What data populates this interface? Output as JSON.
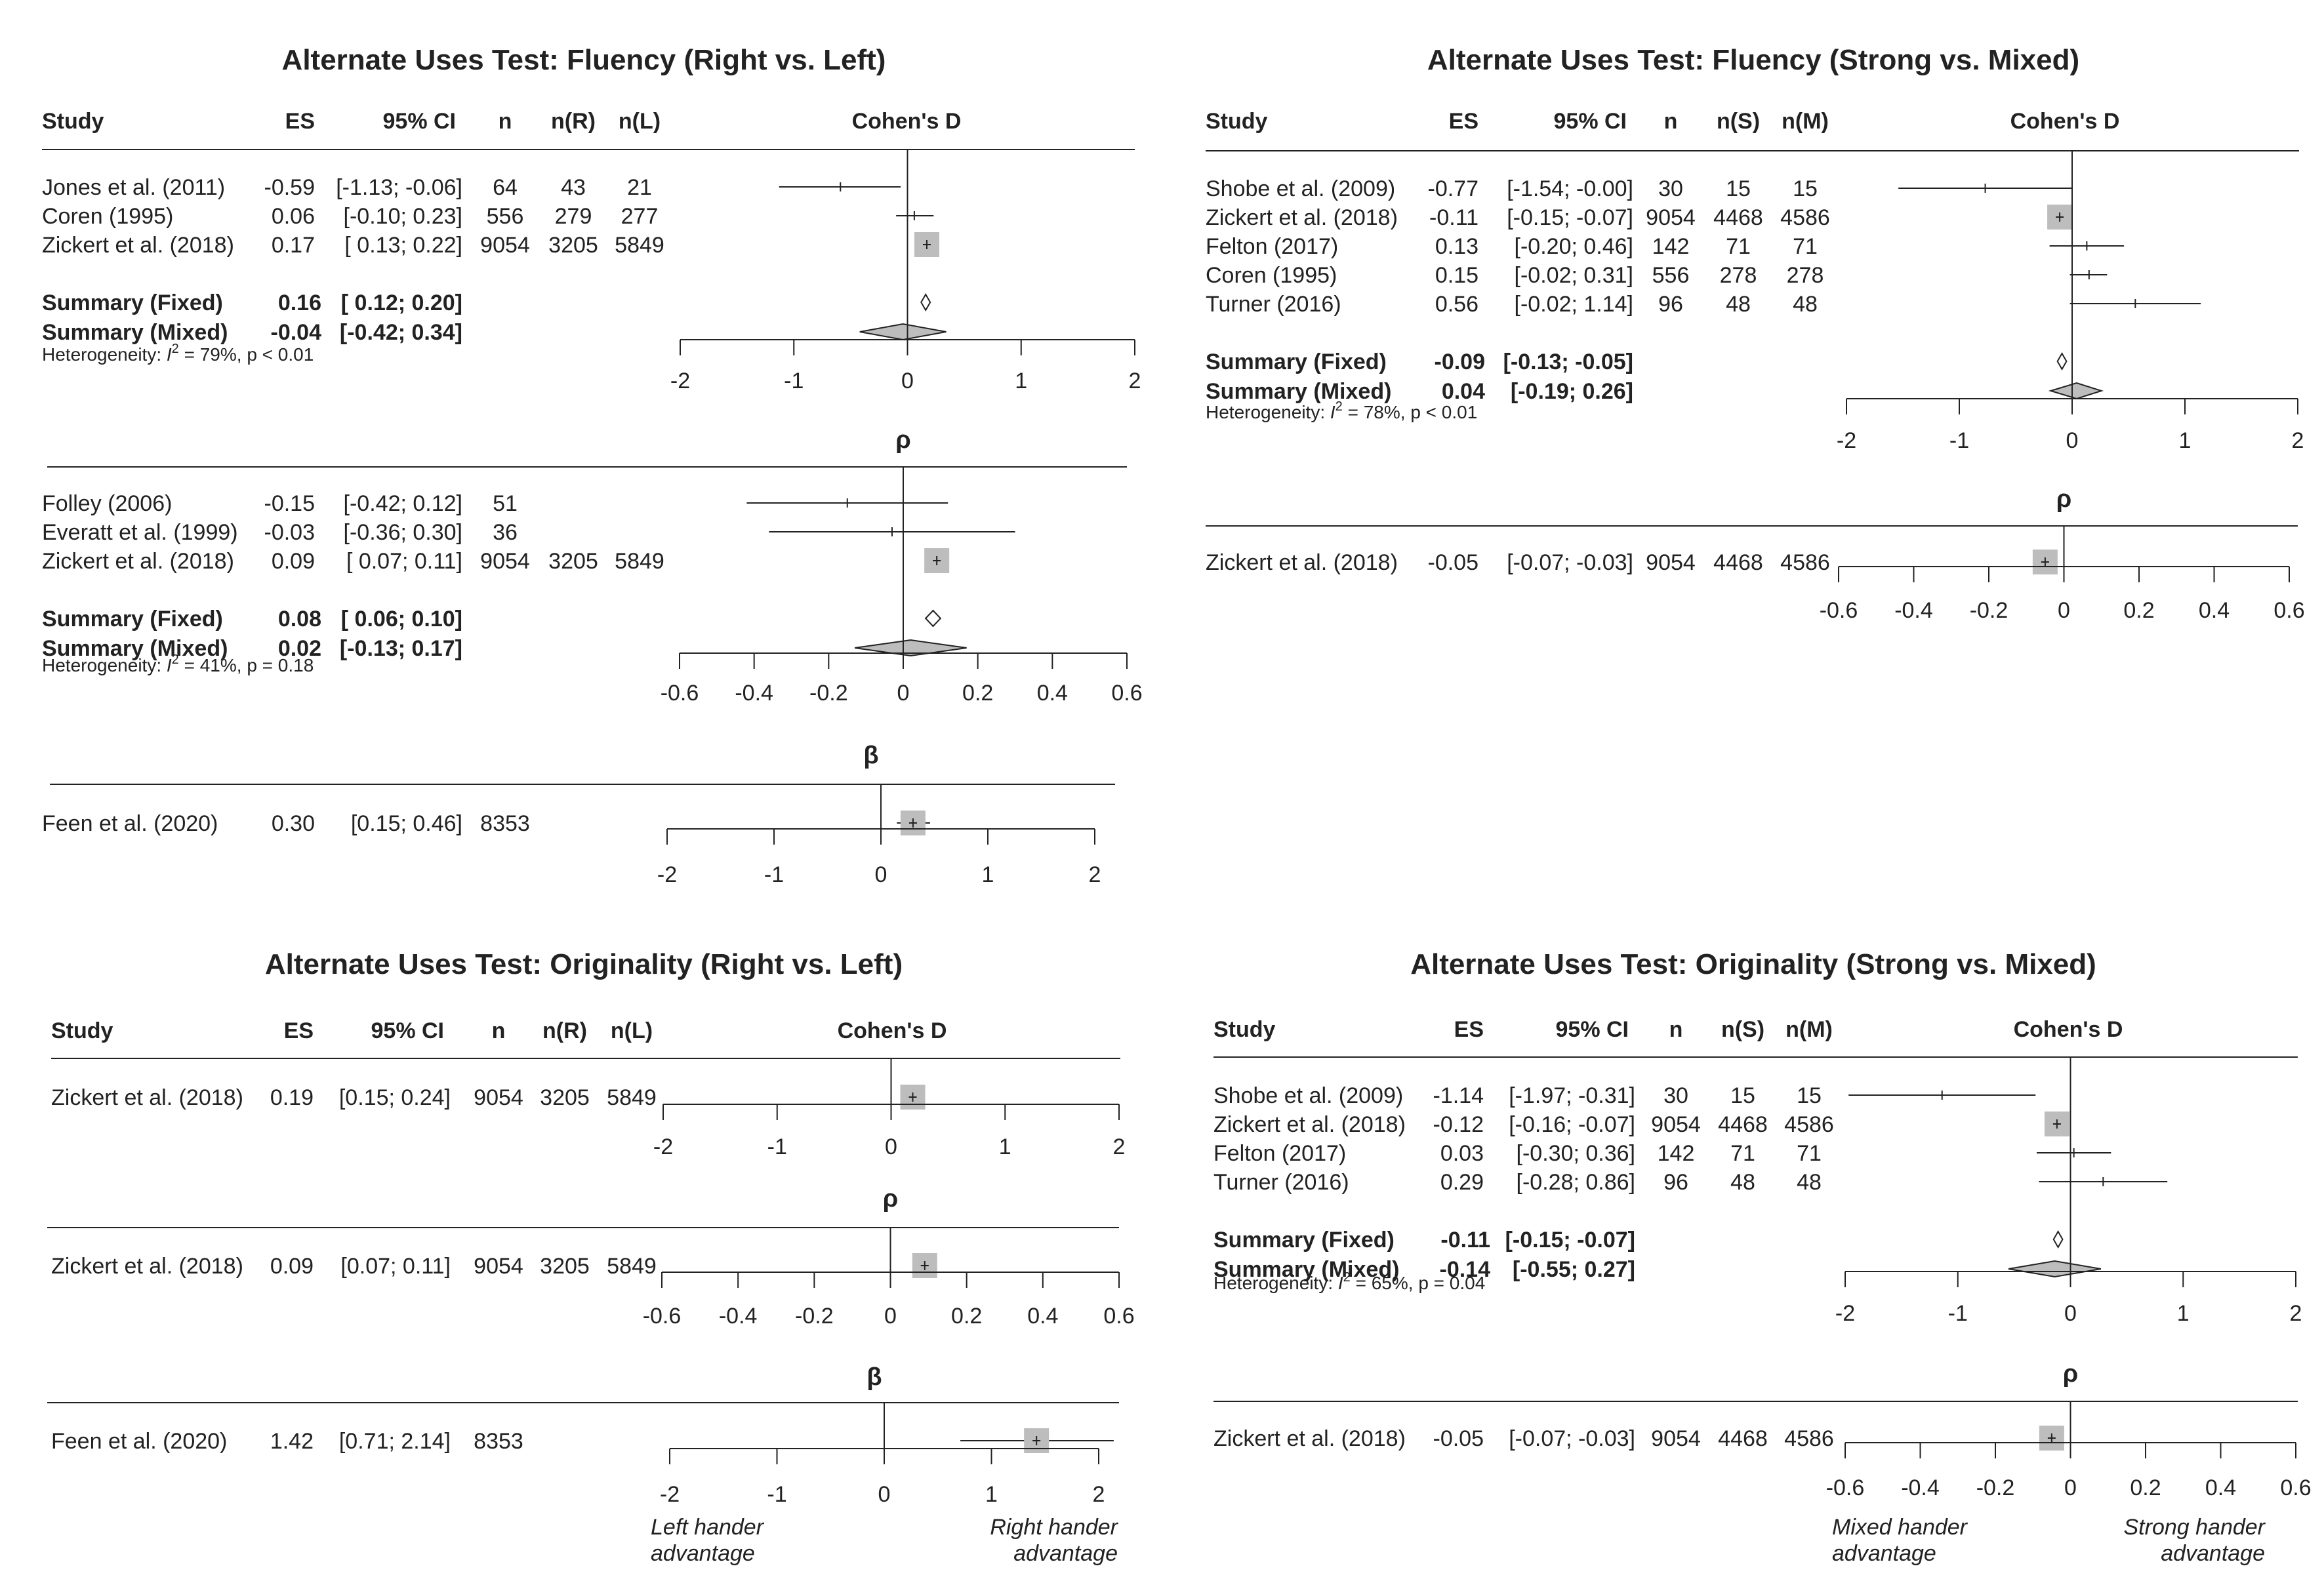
{
  "chart_data": [
    {
      "type": "forest",
      "title": "Alternate Uses Test: Fluency (Right vs. Left)",
      "columns": [
        "Study",
        "ES",
        "95% CI",
        "n",
        "n(R)",
        "n(L)"
      ],
      "axis_title": "",
      "sections": [
        {
          "label": "Cohen's D",
          "xlim": [
            -2,
            2
          ],
          "ticks": [
            "-2",
            "-1",
            "0",
            "1",
            "2"
          ],
          "studies": [
            {
              "study": "Jones et al. (2011)",
              "es_text": "-0.59",
              "ci_text": "[-1.13; -0.06]",
              "n": "64",
              "n1": "43",
              "n2": "21",
              "es": -0.59,
              "lo": -1.13,
              "hi": -0.06,
              "w": 0.1
            },
            {
              "study": "Coren (1995)",
              "es_text": "0.06",
              "ci_text": "[-0.10;  0.23]",
              "n": "556",
              "n1": "279",
              "n2": "277",
              "es": 0.06,
              "lo": -0.1,
              "hi": 0.23,
              "w": 0.25
            },
            {
              "study": "Zickert et al. (2018)",
              "es_text": "0.17",
              "ci_text": "[ 0.13;  0.22]",
              "n": "9054",
              "n1": "3205",
              "n2": "5849",
              "es": 0.17,
              "lo": 0.13,
              "hi": 0.22,
              "w": 1.0
            }
          ],
          "summaries": [
            {
              "label": "Summary (Fixed)",
              "es_text": "0.16",
              "ci_text": "[ 0.12;  0.20]",
              "es": 0.16,
              "lo": 0.12,
              "hi": 0.2
            },
            {
              "label": "Summary (Mixed)",
              "es_text": "-0.04",
              "ci_text": "[-0.42;  0.34]",
              "es": -0.04,
              "lo": -0.42,
              "hi": 0.34
            }
          ],
          "heterogeneity": {
            "i2": "79%",
            "p": "p < 0.01"
          }
        },
        {
          "label": "ρ",
          "xlim": [
            -0.6,
            0.6
          ],
          "ticks": [
            "-0.6",
            "-0.4",
            "-0.2",
            "0",
            "0.2",
            "0.4",
            "0.6"
          ],
          "studies": [
            {
              "study": "Folley (2006)",
              "es_text": "-0.15",
              "ci_text": "[-0.42; 0.12]",
              "n": "51",
              "n1": "",
              "n2": "",
              "es": -0.15,
              "lo": -0.42,
              "hi": 0.12,
              "w": 0.1
            },
            {
              "study": "Everatt et al. (1999)",
              "es_text": "-0.03",
              "ci_text": "[-0.36; 0.30]",
              "n": "36",
              "n1": "",
              "n2": "",
              "es": -0.03,
              "lo": -0.36,
              "hi": 0.3,
              "w": 0.1
            },
            {
              "study": "Zickert et al. (2018)",
              "es_text": "0.09",
              "ci_text": "[ 0.07; 0.11]",
              "n": "9054",
              "n1": "3205",
              "n2": "5849",
              "es": 0.09,
              "lo": 0.07,
              "hi": 0.11,
              "w": 1.0
            }
          ],
          "summaries": [
            {
              "label": "Summary (Fixed)",
              "es_text": "0.08",
              "ci_text": "[ 0.06; 0.10]",
              "es": 0.08,
              "lo": 0.06,
              "hi": 0.1
            },
            {
              "label": "Summary (Mixed)",
              "es_text": "0.02",
              "ci_text": "[-0.13; 0.17]",
              "es": 0.02,
              "lo": -0.13,
              "hi": 0.17
            }
          ],
          "heterogeneity": {
            "i2": "41%",
            "p": "p = 0.18"
          }
        },
        {
          "label": "β",
          "xlim": [
            -2,
            2
          ],
          "ticks": [
            "-2",
            "-1",
            "0",
            "1",
            "2"
          ],
          "studies": [
            {
              "study": "Feen et al. (2020)",
              "es_text": "0.30",
              "ci_text": "[0.15; 0.46]",
              "n": "8353",
              "n1": "",
              "n2": "",
              "es": 0.3,
              "lo": 0.15,
              "hi": 0.46,
              "w": 1.0
            }
          ],
          "summaries": [],
          "heterogeneity": null
        }
      ],
      "advantage_left": "",
      "advantage_right": ""
    },
    {
      "type": "forest",
      "title": "Alternate Uses Test: Fluency (Strong vs. Mixed)",
      "columns": [
        "Study",
        "ES",
        "95% CI",
        "n",
        "n(S)",
        "n(M)"
      ],
      "sections": [
        {
          "label": "Cohen's D",
          "xlim": [
            -2,
            2
          ],
          "ticks": [
            "-2",
            "-1",
            "0",
            "1",
            "2"
          ],
          "studies": [
            {
              "study": "Shobe et al. (2009)",
              "es_text": "-0.77",
              "ci_text": "[-1.54; -0.00]",
              "n": "30",
              "n1": "15",
              "n2": "15",
              "es": -0.77,
              "lo": -1.54,
              "hi": -0.0,
              "w": 0.1
            },
            {
              "study": "Zickert et al. (2018)",
              "es_text": "-0.11",
              "ci_text": "[-0.15; -0.07]",
              "n": "9054",
              "n1": "4468",
              "n2": "4586",
              "es": -0.11,
              "lo": -0.15,
              "hi": -0.07,
              "w": 1.0
            },
            {
              "study": "Felton (2017)",
              "es_text": "0.13",
              "ci_text": "[-0.20;  0.46]",
              "n": "142",
              "n1": "71",
              "n2": "71",
              "es": 0.13,
              "lo": -0.2,
              "hi": 0.46,
              "w": 0.1
            },
            {
              "study": "Coren (1995)",
              "es_text": "0.15",
              "ci_text": "[-0.02;  0.31]",
              "n": "556",
              "n1": "278",
              "n2": "278",
              "es": 0.15,
              "lo": -0.02,
              "hi": 0.31,
              "w": 0.2
            },
            {
              "study": "Turner (2016)",
              "es_text": "0.56",
              "ci_text": "[-0.02;  1.14]",
              "n": "96",
              "n1": "48",
              "n2": "48",
              "es": 0.56,
              "lo": -0.02,
              "hi": 1.14,
              "w": 0.1
            }
          ],
          "summaries": [
            {
              "label": "Summary (Fixed)",
              "es_text": "-0.09",
              "ci_text": "[-0.13; -0.05]",
              "es": -0.09,
              "lo": -0.13,
              "hi": -0.05
            },
            {
              "label": "Summary (Mixed)",
              "es_text": "0.04",
              "ci_text": "[-0.19;  0.26]",
              "es": 0.04,
              "lo": -0.19,
              "hi": 0.26
            }
          ],
          "heterogeneity": {
            "i2": "78%",
            "p": "p < 0.01"
          }
        },
        {
          "label": "ρ",
          "xlim": [
            -0.6,
            0.6
          ],
          "ticks": [
            "-0.6",
            "-0.4",
            "-0.2",
            "0",
            "0.2",
            "0.4",
            "0.6"
          ],
          "studies": [
            {
              "study": "Zickert et al. (2018)",
              "es_text": "-0.05",
              "ci_text": "[-0.07; -0.03]",
              "n": "9054",
              "n1": "4468",
              "n2": "4586",
              "es": -0.05,
              "lo": -0.07,
              "hi": -0.03,
              "w": 1.0
            }
          ],
          "summaries": [],
          "heterogeneity": null
        }
      ],
      "advantage_left": "",
      "advantage_right": ""
    },
    {
      "type": "forest",
      "title": "Alternate Uses Test: Originality (Right vs. Left)",
      "columns": [
        "Study",
        "ES",
        "95% CI",
        "n",
        "n(R)",
        "n(L)"
      ],
      "sections": [
        {
          "label": "Cohen's D",
          "xlim": [
            -2,
            2
          ],
          "ticks": [
            "-2",
            "-1",
            "0",
            "1",
            "2"
          ],
          "studies": [
            {
              "study": "Zickert et al. (2018)",
              "es_text": "0.19",
              "ci_text": "[0.15; 0.24]",
              "n": "9054",
              "n1": "3205",
              "n2": "5849",
              "es": 0.19,
              "lo": 0.15,
              "hi": 0.24,
              "w": 1.0
            }
          ],
          "summaries": [],
          "heterogeneity": null
        },
        {
          "label": "ρ",
          "xlim": [
            -0.6,
            0.6
          ],
          "ticks": [
            "-0.6",
            "-0.4",
            "-0.2",
            "0",
            "0.2",
            "0.4",
            "0.6"
          ],
          "studies": [
            {
              "study": "Zickert et al. (2018)",
              "es_text": "0.09",
              "ci_text": "[0.07; 0.11]",
              "n": "9054",
              "n1": "3205",
              "n2": "5849",
              "es": 0.09,
              "lo": 0.07,
              "hi": 0.11,
              "w": 1.0
            }
          ],
          "summaries": [],
          "heterogeneity": null
        },
        {
          "label": "β",
          "xlim": [
            -2,
            2
          ],
          "ticks": [
            "-2",
            "-1",
            "0",
            "1",
            "2"
          ],
          "studies": [
            {
              "study": "Feen et al. (2020)",
              "es_text": "1.42",
              "ci_text": "[0.71; 2.14]",
              "n": "8353",
              "n1": "",
              "n2": "",
              "es": 1.42,
              "lo": 0.71,
              "hi": 2.14,
              "w": 1.0
            }
          ],
          "summaries": [],
          "heterogeneity": null
        }
      ],
      "advantage_left": "Left hander advantage",
      "advantage_right": "Right hander advantage"
    },
    {
      "type": "forest",
      "title": "Alternate Uses Test: Originality (Strong vs. Mixed)",
      "columns": [
        "Study",
        "ES",
        "95% CI",
        "n",
        "n(S)",
        "n(M)"
      ],
      "sections": [
        {
          "label": "Cohen's D",
          "xlim": [
            -2,
            2
          ],
          "ticks": [
            "-2",
            "-1",
            "0",
            "1",
            "2"
          ],
          "studies": [
            {
              "study": "Shobe et al. (2009)",
              "es_text": "-1.14",
              "ci_text": "[-1.97; -0.31]",
              "n": "30",
              "n1": "15",
              "n2": "15",
              "es": -1.14,
              "lo": -1.97,
              "hi": -0.31,
              "w": 0.1
            },
            {
              "study": "Zickert et al. (2018)",
              "es_text": "-0.12",
              "ci_text": "[-0.16; -0.07]",
              "n": "9054",
              "n1": "4468",
              "n2": "4586",
              "es": -0.12,
              "lo": -0.16,
              "hi": -0.07,
              "w": 1.0
            },
            {
              "study": "Felton (2017)",
              "es_text": "0.03",
              "ci_text": "[-0.30;  0.36]",
              "n": "142",
              "n1": "71",
              "n2": "71",
              "es": 0.03,
              "lo": -0.3,
              "hi": 0.36,
              "w": 0.1
            },
            {
              "study": "Turner (2016)",
              "es_text": "0.29",
              "ci_text": "[-0.28;  0.86]",
              "n": "96",
              "n1": "48",
              "n2": "48",
              "es": 0.29,
              "lo": -0.28,
              "hi": 0.86,
              "w": 0.1
            }
          ],
          "summaries": [
            {
              "label": "Summary (Fixed)",
              "es_text": "-0.11",
              "ci_text": "[-0.15; -0.07]",
              "es": -0.11,
              "lo": -0.15,
              "hi": -0.07
            },
            {
              "label": "Summary (Mixed)",
              "es_text": "-0.14",
              "ci_text": "[-0.55;  0.27]",
              "es": -0.14,
              "lo": -0.55,
              "hi": 0.27
            }
          ],
          "heterogeneity": {
            "i2": "65%",
            "p": "p = 0.04"
          }
        },
        {
          "label": "ρ",
          "xlim": [
            -0.6,
            0.6
          ],
          "ticks": [
            "-0.6",
            "-0.4",
            "-0.2",
            "0",
            "0.2",
            "0.4",
            "0.6"
          ],
          "studies": [
            {
              "study": "Zickert et al. (2018)",
              "es_text": "-0.05",
              "ci_text": "[-0.07; -0.03]",
              "n": "9054",
              "n1": "4468",
              "n2": "4586",
              "es": -0.05,
              "lo": -0.07,
              "hi": -0.03,
              "w": 1.0
            }
          ],
          "summaries": [],
          "heterogeneity": null
        }
      ],
      "advantage_left": "Mixed hander advantage",
      "advantage_right": "Strong hander advantage"
    }
  ],
  "labels": {
    "heterogeneity_prefix": "Heterogeneity: ",
    "i2_symbol": "I",
    "i2_sup": "2",
    "i2_eq": " = "
  },
  "colors": {
    "box": "#bdbdbd",
    "line": "#222222",
    "diamond": "#bdbdbd"
  }
}
